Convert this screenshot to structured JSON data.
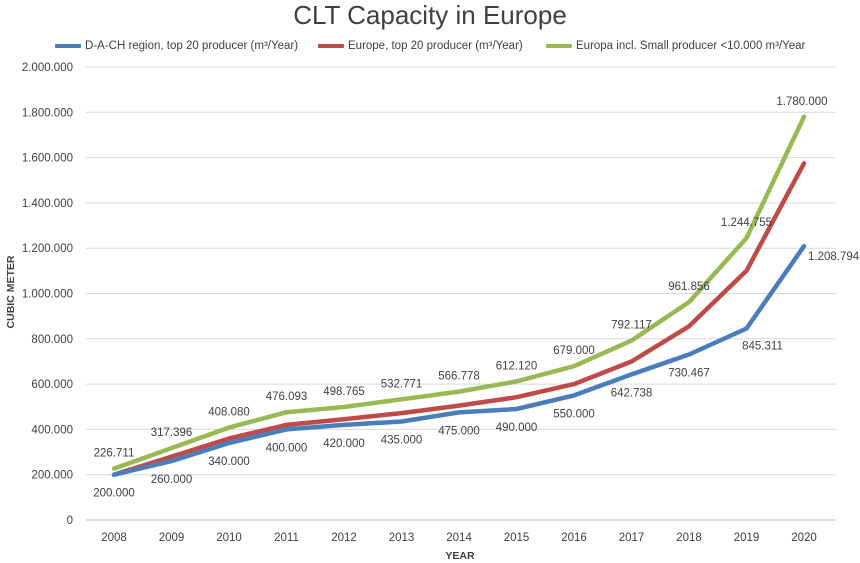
{
  "chart_data": {
    "type": "line",
    "title": "CLT Capacity in Europe",
    "xlabel": "YEAR",
    "ylabel": "CUBIC METER",
    "ylim": [
      0,
      2000000
    ],
    "yticks": [
      0,
      200000,
      400000,
      600000,
      800000,
      1000000,
      1200000,
      1400000,
      1600000,
      1800000,
      2000000
    ],
    "ytick_labels": [
      "0",
      "200.000",
      "400.000",
      "600.000",
      "800.000",
      "1.000.000",
      "1.200.000",
      "1.400.000",
      "1.600.000",
      "1.800.000",
      "2.000.000"
    ],
    "grid": true,
    "legend_position": "top",
    "categories": [
      "2008",
      "2009",
      "2010",
      "2011",
      "2012",
      "2013",
      "2014",
      "2015",
      "2016",
      "2017",
      "2018",
      "2019",
      "2020"
    ],
    "series": [
      {
        "name": "D-A-CH region, top 20 producer (m³/Year)",
        "color": "#4a7ebb",
        "values": [
          200000,
          260000,
          340000,
          400000,
          420000,
          435000,
          475000,
          490000,
          550000,
          642738,
          730467,
          845311,
          1208794
        ],
        "labels": [
          "200.000",
          "260.000",
          "340.000",
          "400.000",
          "420.000",
          "435.000",
          "475.000",
          "490.000",
          "550.000",
          "642.738",
          "730.467",
          "845.311",
          "1.208.794"
        ]
      },
      {
        "name": "Europe, top 20 producer (m³/Year)",
        "color": "#be4b48",
        "values": [
          200000,
          280000,
          360000,
          420000,
          445000,
          472000,
          505000,
          542000,
          600000,
          700000,
          855000,
          1100000,
          1575000
        ]
      },
      {
        "name": "Europa incl. Small producer <10.000 m³/Year",
        "color": "#98b954",
        "values": [
          226711,
          317396,
          408080,
          476093,
          498765,
          532771,
          566778,
          612120,
          679000,
          792117,
          961856,
          1244755,
          1780000
        ],
        "labels": [
          "226.711",
          "317.396",
          "408.080",
          "476.093",
          "498.765",
          "532.771",
          "566.778",
          "612.120",
          "679.000",
          "792.117",
          "961.856",
          "1.244.755",
          "1.780.000"
        ]
      }
    ]
  }
}
